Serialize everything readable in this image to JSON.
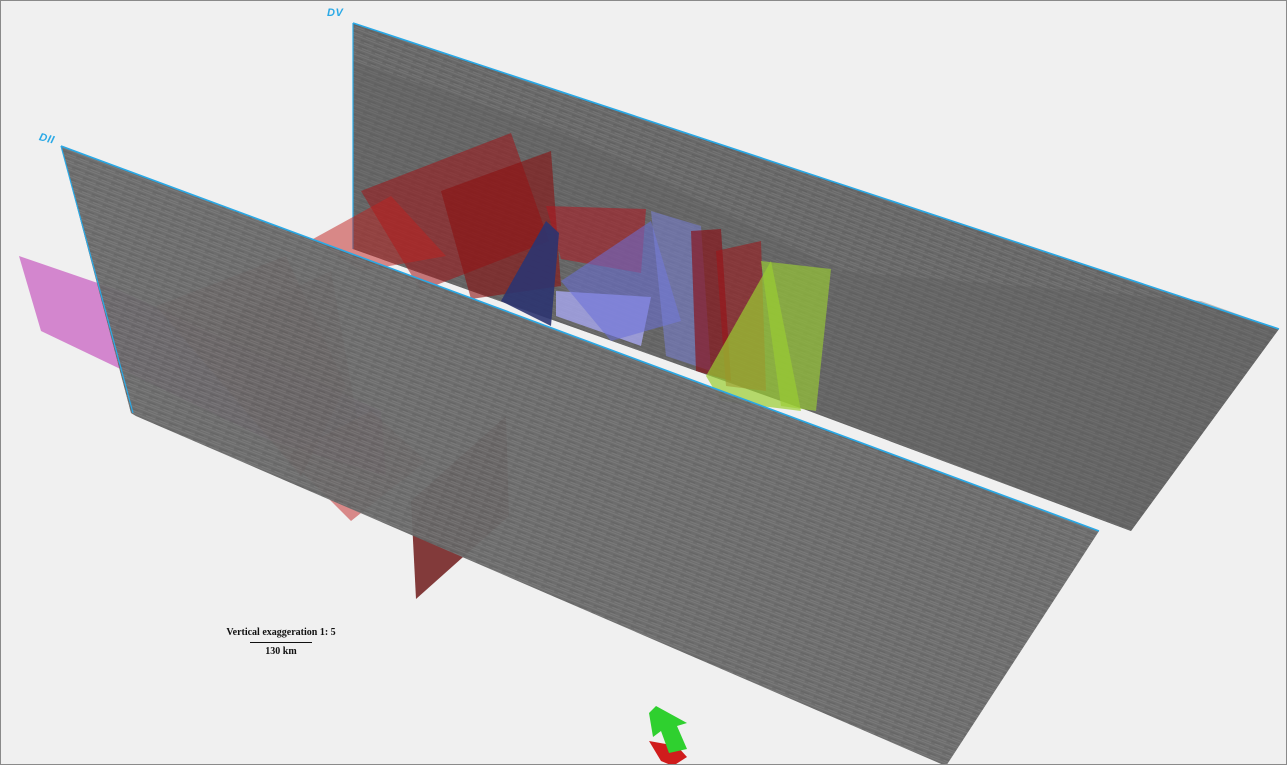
{
  "viewer": {
    "background": "#f0f0f0",
    "seismic_color": "#6a6a6a",
    "line_edge_color": "#2aa9e6"
  },
  "seismic_lines": [
    {
      "name": "DV"
    },
    {
      "name": "DII"
    }
  ],
  "scale": {
    "vertical_exaggeration": "Vertical exaggeration 1: 5",
    "bar_length": "130 km"
  },
  "fault_colors": {
    "red": "#a01418",
    "dark_red": "#6e1a1a",
    "magenta": "#c040b8",
    "navy": "#2c3470",
    "lavender": "#a8a8f0",
    "green": "#9acd32"
  },
  "north_arrow": {
    "icon": "north-arrow-icon",
    "top_color": "#2fd02f",
    "side_color": "#d01c1c"
  }
}
